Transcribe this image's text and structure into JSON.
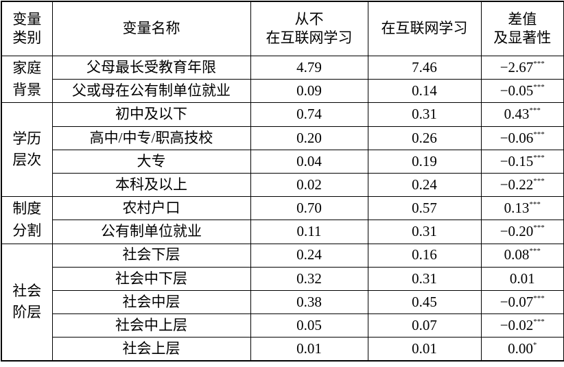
{
  "table": {
    "header": [
      "变量\n类别",
      "变量名称",
      "从不\n在互联网学习",
      "在互联网学习",
      "差值\n及显著性"
    ],
    "groups": [
      {
        "label": "家庭\n背景",
        "rows": [
          {
            "name": "父母最长受教育年限",
            "never": "4.79",
            "online": "7.46",
            "diff": "−2.67",
            "sig": "***"
          },
          {
            "name": "父或母在公有制单位就业",
            "never": "0.09",
            "online": "0.14",
            "diff": "−0.05",
            "sig": "***"
          }
        ]
      },
      {
        "label": "学历\n层次",
        "rows": [
          {
            "name": "初中及以下",
            "never": "0.74",
            "online": "0.31",
            "diff": "0.43",
            "sig": "***"
          },
          {
            "name": "高中/中专/职高技校",
            "never": "0.20",
            "online": "0.26",
            "diff": "−0.06",
            "sig": "***"
          },
          {
            "name": "大专",
            "never": "0.04",
            "online": "0.19",
            "diff": "−0.15",
            "sig": "***"
          },
          {
            "name": "本科及以上",
            "never": "0.02",
            "online": "0.24",
            "diff": "−0.22",
            "sig": "***"
          }
        ]
      },
      {
        "label": "制度\n分割",
        "rows": [
          {
            "name": "农村户口",
            "never": "0.70",
            "online": "0.57",
            "diff": "0.13",
            "sig": "***"
          },
          {
            "name": "公有制单位就业",
            "never": "0.11",
            "online": "0.31",
            "diff": "−0.20",
            "sig": "***"
          }
        ]
      },
      {
        "label": "社会\n阶层",
        "rows": [
          {
            "name": "社会下层",
            "never": "0.24",
            "online": "0.16",
            "diff": "0.08",
            "sig": "***"
          },
          {
            "name": "社会中下层",
            "never": "0.32",
            "online": "0.31",
            "diff": "0.01"
          },
          {
            "name": "社会中层",
            "never": "0.38",
            "online": "0.45",
            "diff": "−0.07",
            "sig": "***"
          },
          {
            "name": "社会中上层",
            "never": "0.05",
            "online": "0.07",
            "diff": "−0.02",
            "sig": "***"
          },
          {
            "name": "社会上层",
            "never": "0.01",
            "online": "0.01",
            "diff": "0.00",
            "sig": "*"
          }
        ]
      }
    ]
  }
}
